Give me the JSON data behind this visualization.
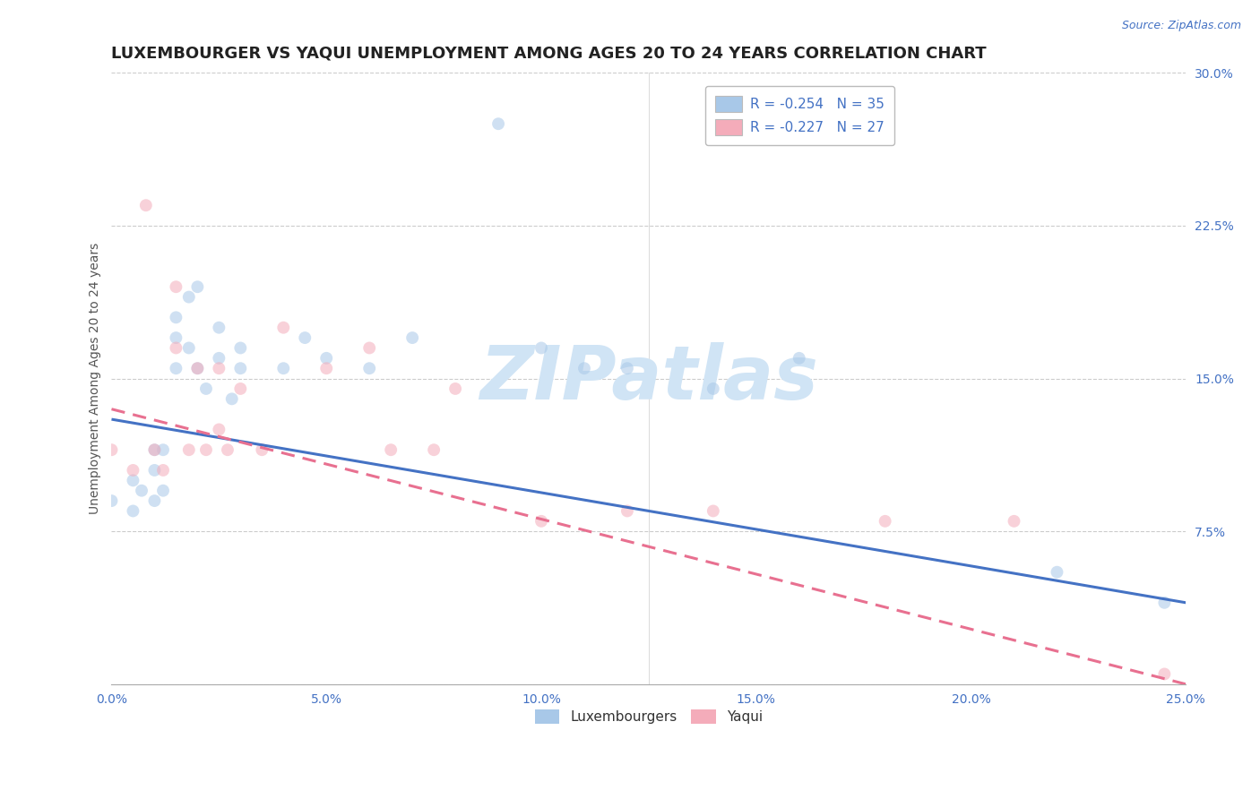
{
  "title": "LUXEMBOURGER VS YAQUI UNEMPLOYMENT AMONG AGES 20 TO 24 YEARS CORRELATION CHART",
  "source": "Source: ZipAtlas.com",
  "ylabel": "Unemployment Among Ages 20 to 24 years",
  "xlim": [
    0.0,
    0.25
  ],
  "ylim": [
    0.0,
    0.3
  ],
  "legend_label1": "R = -0.254   N = 35",
  "legend_label2": "R = -0.227   N = 27",
  "legend_bottom_label1": "Luxembourgers",
  "legend_bottom_label2": "Yaqui",
  "color_blue": "#A8C8E8",
  "color_pink": "#F4ACBA",
  "color_blue_line": "#4472C4",
  "color_pink_line": "#E87090",
  "lux_x": [
    0.0,
    0.005,
    0.005,
    0.007,
    0.01,
    0.01,
    0.01,
    0.012,
    0.012,
    0.015,
    0.015,
    0.015,
    0.018,
    0.018,
    0.02,
    0.02,
    0.022,
    0.025,
    0.025,
    0.028,
    0.03,
    0.03,
    0.04,
    0.045,
    0.05,
    0.06,
    0.07,
    0.09,
    0.1,
    0.11,
    0.12,
    0.14,
    0.16,
    0.22,
    0.245
  ],
  "lux_y": [
    0.09,
    0.085,
    0.1,
    0.095,
    0.115,
    0.105,
    0.09,
    0.115,
    0.095,
    0.18,
    0.17,
    0.155,
    0.165,
    0.19,
    0.155,
    0.195,
    0.145,
    0.16,
    0.175,
    0.14,
    0.155,
    0.165,
    0.155,
    0.17,
    0.16,
    0.155,
    0.17,
    0.275,
    0.165,
    0.155,
    0.155,
    0.145,
    0.16,
    0.055,
    0.04
  ],
  "yaq_x": [
    0.0,
    0.005,
    0.008,
    0.01,
    0.012,
    0.015,
    0.015,
    0.018,
    0.02,
    0.022,
    0.025,
    0.025,
    0.027,
    0.03,
    0.035,
    0.04,
    0.05,
    0.06,
    0.065,
    0.075,
    0.08,
    0.1,
    0.12,
    0.14,
    0.18,
    0.21,
    0.245
  ],
  "yaq_y": [
    0.115,
    0.105,
    0.235,
    0.115,
    0.105,
    0.195,
    0.165,
    0.115,
    0.155,
    0.115,
    0.155,
    0.125,
    0.115,
    0.145,
    0.115,
    0.175,
    0.155,
    0.165,
    0.115,
    0.115,
    0.145,
    0.08,
    0.085,
    0.085,
    0.08,
    0.08,
    0.005
  ],
  "background_color": "#FFFFFF",
  "grid_color": "#CCCCCC",
  "watermark_color": "#D0E4F5",
  "title_fontsize": 13,
  "tick_fontsize": 10,
  "legend_fontsize": 11,
  "marker_size": 100,
  "marker_alpha": 0.55,
  "line_width": 2.2
}
